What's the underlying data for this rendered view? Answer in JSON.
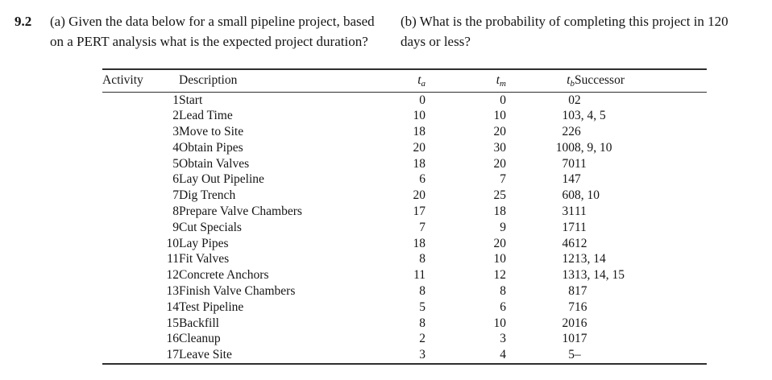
{
  "page": {
    "problem_number": "9.2",
    "part_a": {
      "line1": "(a) Given the data below for a small pipeline project, based",
      "line2": "on a PERT analysis what is the expected project duration?"
    },
    "part_b": {
      "line1": "(b) What is the probability of completing this project in 120",
      "line2": "days or less?"
    }
  },
  "table": {
    "headers": {
      "activity": "Activity",
      "description": "Description",
      "ta_base": "t",
      "ta_sub": "a",
      "tm_base": "t",
      "tm_sub": "m",
      "tb_base": "t",
      "tb_sub": "b",
      "successor": "Successor"
    },
    "rows": [
      {
        "activity": "1",
        "description": "Start",
        "ta": "0",
        "tm": "0",
        "tb": "0",
        "successor": "2"
      },
      {
        "activity": "2",
        "description": "Lead Time",
        "ta": "10",
        "tm": "10",
        "tb": "10",
        "successor": "3, 4, 5"
      },
      {
        "activity": "3",
        "description": "Move to Site",
        "ta": "18",
        "tm": "20",
        "tb": "22",
        "successor": "6"
      },
      {
        "activity": "4",
        "description": "Obtain Pipes",
        "ta": "20",
        "tm": "30",
        "tb": "100",
        "successor": "8, 9, 10"
      },
      {
        "activity": "5",
        "description": "Obtain Valves",
        "ta": "18",
        "tm": "20",
        "tb": "70",
        "successor": "11"
      },
      {
        "activity": "6",
        "description": "Lay Out Pipeline",
        "ta": "6",
        "tm": "7",
        "tb": "14",
        "successor": "7"
      },
      {
        "activity": "7",
        "description": "Dig Trench",
        "ta": "20",
        "tm": "25",
        "tb": "60",
        "successor": "8, 10"
      },
      {
        "activity": "8",
        "description": "Prepare Valve Chambers",
        "ta": "17",
        "tm": "18",
        "tb": "31",
        "successor": "11"
      },
      {
        "activity": "9",
        "description": "Cut Specials",
        "ta": "7",
        "tm": "9",
        "tb": "17",
        "successor": "11"
      },
      {
        "activity": "10",
        "description": "Lay Pipes",
        "ta": "18",
        "tm": "20",
        "tb": "46",
        "successor": "12"
      },
      {
        "activity": "11",
        "description": "Fit Valves",
        "ta": "8",
        "tm": "10",
        "tb": "12",
        "successor": "13, 14"
      },
      {
        "activity": "12",
        "description": "Concrete Anchors",
        "ta": "11",
        "tm": "12",
        "tb": "13",
        "successor": "13, 14, 15"
      },
      {
        "activity": "13",
        "description": "Finish Valve Chambers",
        "ta": "8",
        "tm": "8",
        "tb": "8",
        "successor": "17"
      },
      {
        "activity": "14",
        "description": "Test Pipeline",
        "ta": "5",
        "tm": "6",
        "tb": "7",
        "successor": "16"
      },
      {
        "activity": "15",
        "description": "Backfill",
        "ta": "8",
        "tm": "10",
        "tb": "20",
        "successor": "16"
      },
      {
        "activity": "16",
        "description": "Cleanup",
        "ta": "2",
        "tm": "3",
        "tb": "10",
        "successor": "17"
      },
      {
        "activity": "17",
        "description": "Leave Site",
        "ta": "3",
        "tm": "4",
        "tb": "5",
        "successor": "–"
      }
    ]
  }
}
